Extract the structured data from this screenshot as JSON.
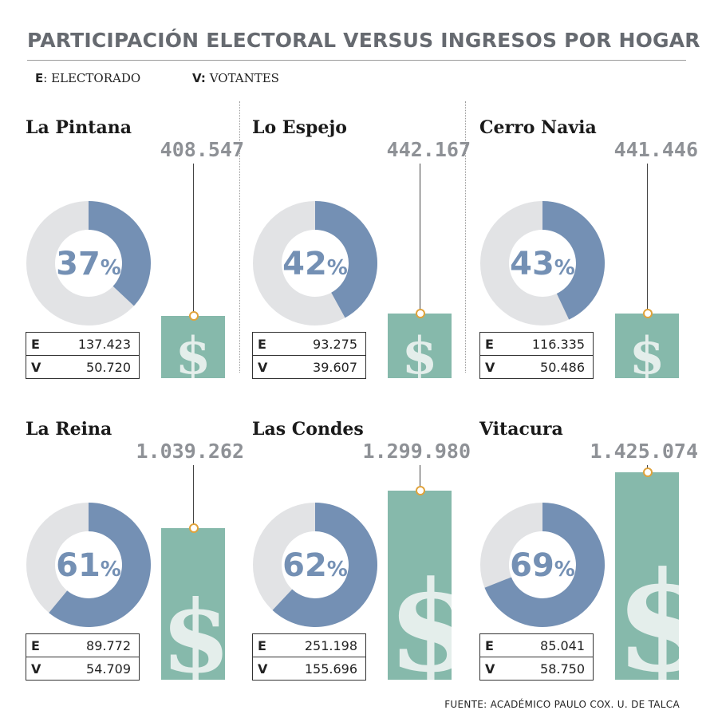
{
  "title": "PARTICIPACIÓN ELECTORAL VERSUS INGRESOS POR HOGAR",
  "legend": {
    "e_key": "E",
    "e_text": ": ELECTORADO",
    "v_key": "V:",
    "v_text": " VOTANTES"
  },
  "source": "FUENTE: ACADÉMICO PAULO COX. U. DE TALCA",
  "colors": {
    "voters": "#7490b4",
    "non_voters": "#e2e3e5",
    "income_bar": "#86b9ab",
    "pin": "#e0a33c",
    "title": "#666a70"
  },
  "chart_data": {
    "type": "donut-and-bar",
    "title": "PARTICIPACIÓN ELECTORAL VERSUS INGRESOS POR HOGAR",
    "income_axis_max": 1425074,
    "stat_labels": {
      "electorado": "E",
      "votantes": "V"
    },
    "panels": [
      {
        "name": "La Pintana",
        "participation": 37,
        "participation_label": "37",
        "pct_sign": "%",
        "electorado": "137.423",
        "votantes": "50.720",
        "income": 408547,
        "income_label": "408.547",
        "dollar": "$"
      },
      {
        "name": "Lo Espejo",
        "participation": 42,
        "participation_label": "42",
        "pct_sign": "%",
        "electorado": "93.275",
        "votantes": "39.607",
        "income": 442167,
        "income_label": "442.167",
        "dollar": "$"
      },
      {
        "name": "Cerro Navia",
        "participation": 43,
        "participation_label": "43",
        "pct_sign": "%",
        "electorado": "116.335",
        "votantes": "50.486",
        "income": 441446,
        "income_label": "441.446",
        "dollar": "$"
      },
      {
        "name": "La Reina",
        "participation": 61,
        "participation_label": "61",
        "pct_sign": "%",
        "electorado": "89.772",
        "votantes": "54.709",
        "income": 1039262,
        "income_label": "1.039.262",
        "dollar": "$"
      },
      {
        "name": "Las Condes",
        "participation": 62,
        "participation_label": "62",
        "pct_sign": "%",
        "electorado": "251.198",
        "votantes": "155.696",
        "income": 1299980,
        "income_label": "1.299.980",
        "dollar": "$"
      },
      {
        "name": "Vitacura",
        "participation": 69,
        "participation_label": "69",
        "pct_sign": "%",
        "electorado": "85.041",
        "votantes": "58.750",
        "income": 1425074,
        "income_label": "1.425.074",
        "dollar": "$"
      }
    ]
  }
}
